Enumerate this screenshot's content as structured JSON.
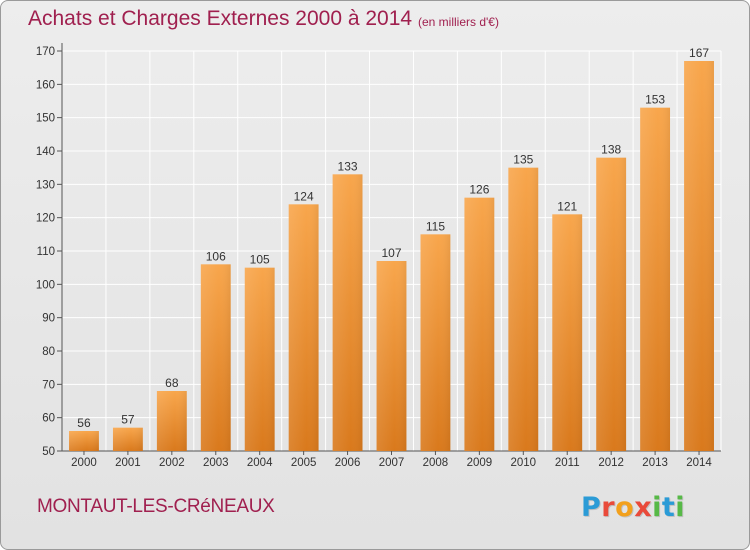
{
  "header": {
    "title": "Achats et Charges Externes 2000 à 2014",
    "subtitle": "(en milliers d'€)"
  },
  "footer": {
    "commune": "MONTAUT-LES-CRéNEAUX",
    "logo": [
      "P",
      "r",
      "o",
      "x",
      "i",
      "t",
      "i"
    ]
  },
  "colors": {
    "bar_top": "#f8a64c",
    "bar_bottom": "#d9791c",
    "title": "#a0204f",
    "grid": "#ffffff"
  },
  "chart_data": {
    "type": "bar",
    "title": "Achats et Charges Externes 2000 à 2014",
    "subtitle": "(en milliers d'€)",
    "categories": [
      "2000",
      "2001",
      "2002",
      "2003",
      "2004",
      "2005",
      "2006",
      "2007",
      "2008",
      "2009",
      "2010",
      "2011",
      "2012",
      "2013",
      "2014"
    ],
    "values": [
      56,
      57,
      68,
      106,
      105,
      124,
      133,
      107,
      115,
      126,
      135,
      121,
      138,
      153,
      167
    ],
    "ylim": [
      50,
      170
    ],
    "yticks": [
      50,
      60,
      70,
      80,
      90,
      100,
      110,
      120,
      130,
      140,
      150,
      160,
      170
    ],
    "grid": true,
    "data_labels": true
  }
}
